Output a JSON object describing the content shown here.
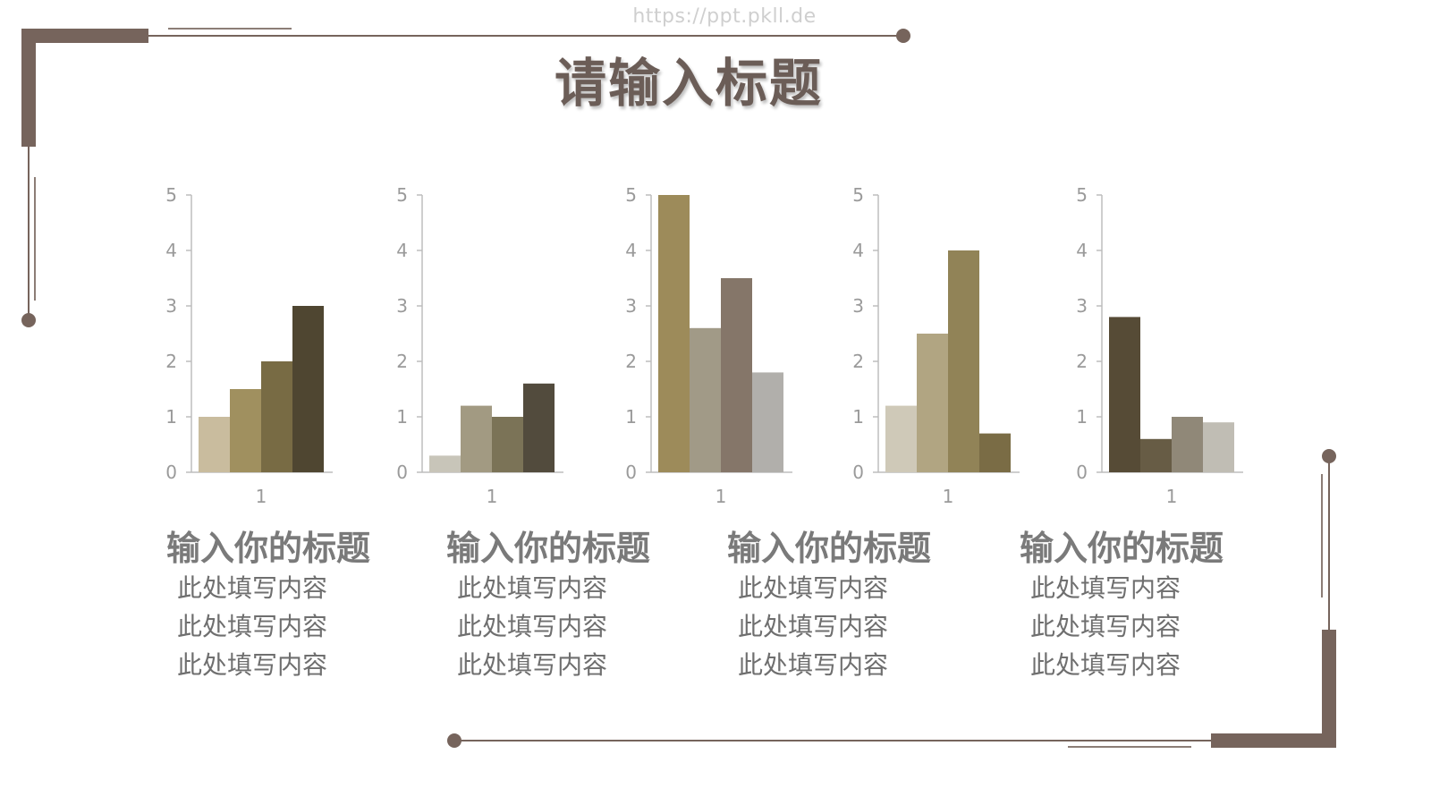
{
  "watermark": "https://ppt.pkll.de",
  "title": "请输入标题",
  "colors": {
    "frame": "#76645c",
    "axis": "#bdbdbd",
    "axis_text": "#9a9a9a"
  },
  "chart_data": [
    {
      "type": "bar",
      "categories": [
        "1"
      ],
      "series": [
        {
          "values": [
            1.0
          ],
          "color": "#c9bc9e"
        },
        {
          "values": [
            1.5
          ],
          "color": "#a0905f"
        },
        {
          "values": [
            2.0
          ],
          "color": "#786b44"
        },
        {
          "values": [
            3.0
          ],
          "color": "#4f4631"
        }
      ],
      "yticks": [
        "0",
        "1",
        "2",
        "3",
        "4",
        "5"
      ],
      "ylim": [
        0,
        5
      ]
    },
    {
      "type": "bar",
      "categories": [
        "1"
      ],
      "series": [
        {
          "values": [
            0.3
          ],
          "color": "#c8c5b9"
        },
        {
          "values": [
            1.2
          ],
          "color": "#a29a82"
        },
        {
          "values": [
            1.0
          ],
          "color": "#7b7357"
        },
        {
          "values": [
            1.6
          ],
          "color": "#524b3d"
        }
      ],
      "yticks": [
        "0",
        "1",
        "2",
        "3",
        "4",
        "5"
      ],
      "ylim": [
        0,
        5
      ]
    },
    {
      "type": "bar",
      "categories": [
        "1"
      ],
      "series": [
        {
          "values": [
            5.0
          ],
          "color": "#9d8b5a"
        },
        {
          "values": [
            2.6
          ],
          "color": "#a19a87"
        },
        {
          "values": [
            3.5
          ],
          "color": "#857669"
        },
        {
          "values": [
            1.8
          ],
          "color": "#b1afab"
        }
      ],
      "yticks": [
        "0",
        "1",
        "2",
        "3",
        "4",
        "5"
      ],
      "ylim": [
        0,
        5
      ]
    },
    {
      "type": "bar",
      "categories": [
        "1"
      ],
      "series": [
        {
          "values": [
            1.2
          ],
          "color": "#cfc9b8"
        },
        {
          "values": [
            2.5
          ],
          "color": "#b1a582"
        },
        {
          "values": [
            4.0
          ],
          "color": "#918357"
        },
        {
          "values": [
            0.7
          ],
          "color": "#7a6c45"
        }
      ],
      "yticks": [
        "0",
        "1",
        "2",
        "3",
        "4",
        "5"
      ],
      "ylim": [
        0,
        5
      ]
    },
    {
      "type": "bar",
      "categories": [
        "1"
      ],
      "series": [
        {
          "values": [
            2.8
          ],
          "color": "#564b36"
        },
        {
          "values": [
            0.6
          ],
          "color": "#675c45"
        },
        {
          "values": [
            1.0
          ],
          "color": "#908878"
        },
        {
          "values": [
            0.9
          ],
          "color": "#c0bdb4"
        }
      ],
      "yticks": [
        "0",
        "1",
        "2",
        "3",
        "4",
        "5"
      ],
      "ylim": [
        0,
        5
      ]
    }
  ],
  "blocks": [
    {
      "title": "输入你的标题",
      "lines": [
        "此处填写内容",
        "此处填写内容",
        "此处填写内容"
      ]
    },
    {
      "title": "输入你的标题",
      "lines": [
        "此处填写内容",
        "此处填写内容",
        "此处填写内容"
      ]
    },
    {
      "title": "输入你的标题",
      "lines": [
        "此处填写内容",
        "此处填写内容",
        "此处填写内容"
      ]
    },
    {
      "title": "输入你的标题",
      "lines": [
        "此处填写内容",
        "此处填写内容",
        "此处填写内容"
      ]
    }
  ]
}
